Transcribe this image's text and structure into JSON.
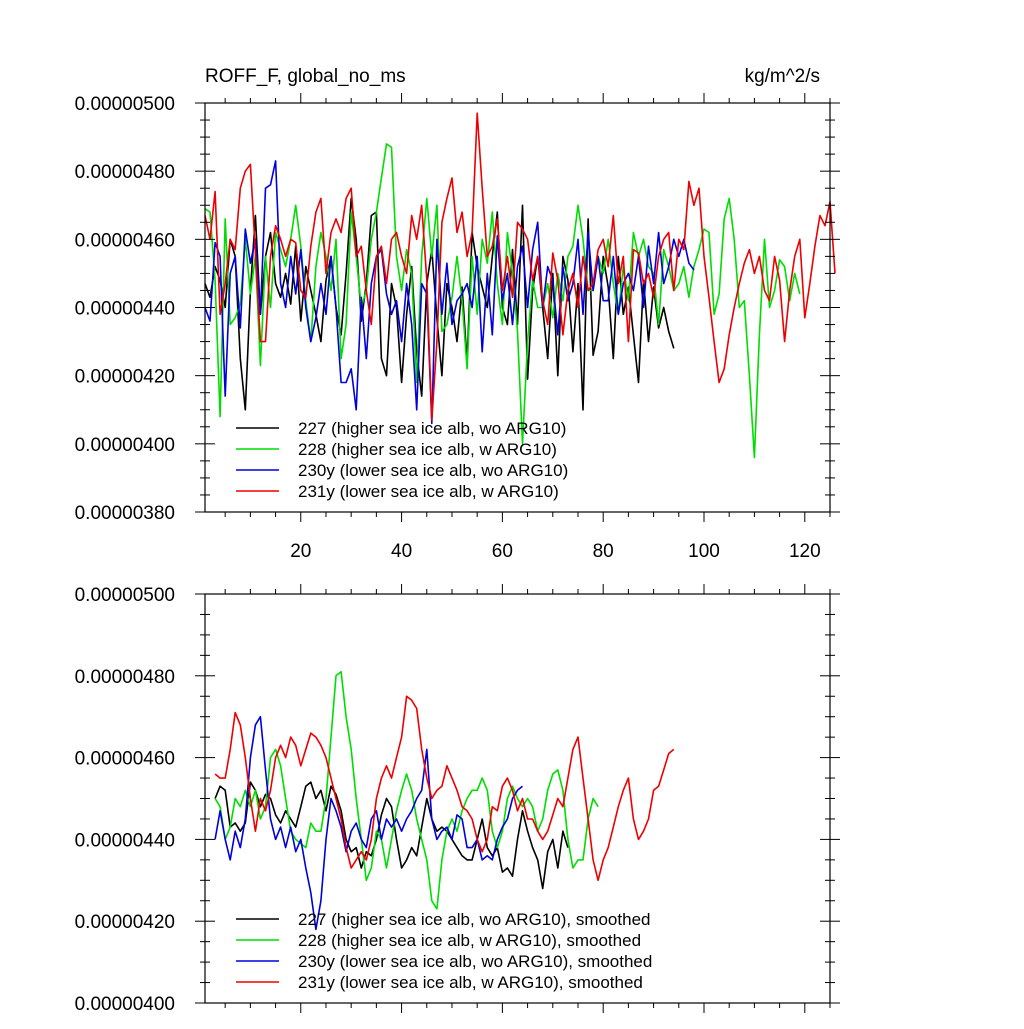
{
  "chart_data": [
    {
      "type": "line",
      "title": "ROFF_F, global_no_ms",
      "units": "kg/m^2/s",
      "ylim": [
        3.8e-06,
        5e-06
      ],
      "xlim": [
        1,
        125
      ],
      "y_ticks": [
        3.8e-06,
        4e-06,
        4.2e-06,
        4.4e-06,
        4.6e-06,
        4.8e-06,
        5e-06
      ],
      "y_tick_labels": [
        "0.00000380",
        "0.00000400",
        "0.00000420",
        "0.00000440",
        "0.00000460",
        "0.00000480",
        "0.00000500"
      ],
      "x_ticks": [
        20,
        40,
        60,
        80,
        100,
        120
      ],
      "x_tick_labels": [
        "20",
        "40",
        "60",
        "80",
        "100",
        "120"
      ],
      "grid": false,
      "legend_position": "bottom-left",
      "series": [
        {
          "name": "227 (higher sea ice alb, wo ARG10)",
          "color": "#000000",
          "start_x": 1,
          "values": [
            4.47e-06,
            4.43e-06,
            4.52e-06,
            4.48e-06,
            4.4e-06,
            4.6e-06,
            4.55e-06,
            4.25e-06,
            4.1e-06,
            4.45e-06,
            4.67e-06,
            4.38e-06,
            4.55e-06,
            4.62e-06,
            4.47e-06,
            4.43e-06,
            4.5e-06,
            4.41e-06,
            4.58e-06,
            4.36e-06,
            4.52e-06,
            4.45e-06,
            4.38e-06,
            4.3e-06,
            4.48e-06,
            4.55e-06,
            4.4e-06,
            4.32e-06,
            4.5e-06,
            4.72e-06,
            4.6e-06,
            4.36e-06,
            4.47e-06,
            4.67e-06,
            4.68e-06,
            4.25e-06,
            4.2e-06,
            4.47e-06,
            4.4e-06,
            4.18e-06,
            4.38e-06,
            4.52e-06,
            4.27e-06,
            4.14e-06,
            4.47e-06,
            4.57e-06,
            4.37e-06,
            4.2e-06,
            4.47e-06,
            4.4e-06,
            4.3e-06,
            4.46e-06,
            4.24e-06,
            4.62e-06,
            4.52e-06,
            4.46e-06,
            4.4e-06,
            4.55e-06,
            4.68e-06,
            4.4e-06,
            4.35e-06,
            4.57e-06,
            4.35e-06,
            4.7e-06,
            4.19e-06,
            4.45e-06,
            4.55e-06,
            4.4e-06,
            4.25e-06,
            4.5e-06,
            4.2e-06,
            4.55e-06,
            4.48e-06,
            4.27e-06,
            4.47e-06,
            4.1e-06,
            4.66e-06,
            4.26e-06,
            4.33e-06,
            4.55e-06,
            4.46e-06,
            4.25e-06,
            4.55e-06,
            4.38e-06,
            4.46e-06,
            4.32e-06,
            4.18e-06,
            4.48e-06,
            4.3e-06,
            4.46e-06,
            4.34e-06,
            4.4e-06,
            4.33e-06,
            4.28e-06
          ]
        },
        {
          "name": "228 (higher sea ice alb, w ARG10)",
          "color": "#00dd00",
          "start_x": 1,
          "values": [
            4.69e-06,
            4.68e-06,
            4.48e-06,
            4.08e-06,
            4.66e-06,
            4.35e-06,
            4.37e-06,
            4.41e-06,
            4.6e-06,
            4.44e-06,
            4.55e-06,
            4.23e-06,
            4.55e-06,
            4.4e-06,
            4.62e-06,
            4.57e-06,
            4.52e-06,
            4.6e-06,
            4.7e-06,
            4.58e-06,
            4.42e-06,
            4.3e-06,
            4.52e-06,
            4.62e-06,
            4.55e-06,
            4.45e-06,
            4.6e-06,
            4.25e-06,
            4.35e-06,
            4.68e-06,
            4.55e-06,
            4.4e-06,
            4.45e-06,
            4.6e-06,
            4.68e-06,
            4.78e-06,
            4.88e-06,
            4.87e-06,
            4.55e-06,
            4.45e-06,
            4.57e-06,
            4.5e-06,
            4.18e-06,
            4.55e-06,
            4.72e-06,
            4.55e-06,
            4.7e-06,
            4.33e-06,
            4.35e-06,
            4.43e-06,
            4.55e-06,
            4.42e-06,
            4.22e-06,
            4.55e-06,
            4.38e-06,
            4.6e-06,
            4.53e-06,
            4.68e-06,
            4.47e-06,
            4.35e-06,
            4.62e-06,
            4.5e-06,
            4.33e-06,
            4e-06,
            4.3e-06,
            4.48e-06,
            4.4e-06,
            4.4e-06,
            4.47e-06,
            4.37e-06,
            4.5e-06,
            4.42e-06,
            4.55e-06,
            4.58e-06,
            4.7e-06,
            4.6e-06,
            4.45e-06,
            4.45e-06,
            4.55e-06,
            4.5e-06,
            4.6e-06,
            4.47e-06,
            4.38e-06,
            4.52e-06,
            4.42e-06,
            4.62e-06,
            4.55e-06,
            4.6e-06,
            4.52e-06,
            4.5e-06,
            4.35e-06,
            4.57e-06,
            4.52e-06,
            4.45e-06,
            4.47e-06,
            4.52e-06,
            4.43e-06,
            4.52e-06,
            4.57e-06,
            4.63e-06,
            4.62e-06,
            4.38e-06,
            4.44e-06,
            4.66e-06,
            4.72e-06,
            4.6e-06,
            4.4e-06,
            4.42e-06,
            4.2e-06,
            3.96e-06,
            4.32e-06,
            4.6e-06,
            4.4e-06,
            4.45e-06,
            4.54e-06,
            4.52e-06,
            4.42e-06,
            4.5e-06,
            4.44e-06
          ]
        },
        {
          "name": "230y (lower sea ice alb, wo ARG10)",
          "color": "#0000dd",
          "start_x": 1,
          "values": [
            4.4e-06,
            4.36e-06,
            4.59e-06,
            4.55e-06,
            4.14e-06,
            4.5e-06,
            4.55e-06,
            4.34e-06,
            4.63e-06,
            4.53e-06,
            4.6e-06,
            4.38e-06,
            4.75e-06,
            4.76e-06,
            4.83e-06,
            4.47e-06,
            4.4e-06,
            4.55e-06,
            4.44e-06,
            4.57e-06,
            4.4e-06,
            4.3e-06,
            4.37e-06,
            4.47e-06,
            4.38e-06,
            4.55e-06,
            4.4e-06,
            4.18e-06,
            4.18e-06,
            4.22e-06,
            4.1e-06,
            4.43e-06,
            4.25e-06,
            4.47e-06,
            4.55e-06,
            4.57e-06,
            4.44e-06,
            4.38e-06,
            4.42e-06,
            4.3e-06,
            4.47e-06,
            4.35e-06,
            4.1e-06,
            4.47e-06,
            4.44e-06,
            4.06e-06,
            4.6e-06,
            4.38e-06,
            4.53e-06,
            4.35e-06,
            4.42e-06,
            4.44e-06,
            4.47e-06,
            4.4e-06,
            4.55e-06,
            4.27e-06,
            4.5e-06,
            4.32e-06,
            4.61e-06,
            4.42e-06,
            4.5e-06,
            4.35e-06,
            4.52e-06,
            4.58e-06,
            4.4e-06,
            4.57e-06,
            4.65e-06,
            4.4e-06,
            4.52e-06,
            4.48e-06,
            4.32e-06,
            4.52e-06,
            4.42e-06,
            4.47e-06,
            4.6e-06,
            4.38e-06,
            4.62e-06,
            4.45e-06,
            4.55e-06,
            4.42e-06,
            4.42e-06,
            4.55e-06,
            4.38e-06,
            4.47e-06,
            4.5e-06,
            4.45e-06,
            4.55e-06,
            4.4e-06,
            4.58e-06,
            4.47e-06,
            4.62e-06,
            4.47e-06,
            4.52e-06,
            4.6e-06,
            4.55e-06,
            4.6e-06,
            4.53e-06,
            4.51e-06
          ]
        },
        {
          "name": "231y (lower sea ice alb, w ARG10)",
          "color": "#ee0000",
          "start_x": 1,
          "values": [
            4.67e-06,
            4.6e-06,
            4.74e-06,
            4.38e-06,
            4.47e-06,
            4.6e-06,
            4.57e-06,
            4.75e-06,
            4.8e-06,
            4.82e-06,
            4.56e-06,
            4.3e-06,
            4.3e-06,
            4.55e-06,
            4.64e-06,
            4.6e-06,
            4.55e-06,
            4.6e-06,
            4.59e-06,
            4.45e-06,
            4.43e-06,
            4.58e-06,
            4.68e-06,
            4.72e-06,
            4.5e-06,
            4.62e-06,
            4.66e-06,
            4.62e-06,
            4.72e-06,
            4.75e-06,
            4.55e-06,
            4.58e-06,
            4.45e-06,
            4.35e-06,
            4.55e-06,
            4.58e-06,
            4.47e-06,
            4.6e-06,
            4.62e-06,
            4.55e-06,
            4.5e-06,
            4.67e-06,
            4.6e-06,
            4.7e-06,
            4.48e-06,
            4.07e-06,
            4.3e-06,
            4.65e-06,
            4.72e-06,
            4.78e-06,
            4.62e-06,
            4.68e-06,
            4.55e-06,
            4.62e-06,
            4.97e-06,
            4.75e-06,
            4.55e-06,
            4.58e-06,
            4.66e-06,
            4.45e-06,
            4.55e-06,
            4.43e-06,
            4.65e-06,
            4.63e-06,
            4.6e-06,
            4.48e-06,
            4.55e-06,
            4.42e-06,
            4.35e-06,
            4.56e-06,
            4.48e-06,
            4.32e-06,
            4.45e-06,
            4.5e-06,
            4.4e-06,
            4.55e-06,
            4.45e-06,
            4.47e-06,
            4.57e-06,
            4.6e-06,
            4.52e-06,
            4.67e-06,
            4.47e-06,
            4.55e-06,
            4.3e-06,
            4.57e-06,
            4.56e-06,
            4.47e-06,
            4.5e-06,
            4.43e-06,
            4.55e-06,
            4.6e-06,
            4.62e-06,
            4.45e-06,
            4.6e-06,
            4.57e-06,
            4.77e-06,
            4.7e-06,
            4.75e-06,
            4.55e-06,
            4.43e-06,
            4.3e-06,
            4.18e-06,
            4.22e-06,
            4.32e-06,
            4.4e-06,
            4.47e-06,
            4.53e-06,
            4.57e-06,
            4.5e-06,
            4.55e-06,
            4.45e-06,
            4.42e-06,
            4.55e-06,
            4.48e-06,
            4.3e-06,
            4.45e-06,
            4.55e-06,
            4.6e-06,
            4.37e-06,
            4.47e-06,
            4.58e-06,
            4.67e-06,
            4.64e-06,
            4.71e-06,
            4.5e-06
          ]
        }
      ]
    },
    {
      "type": "line",
      "ylim": [
        4e-06,
        5e-06
      ],
      "xlim": [
        1,
        125
      ],
      "y_ticks": [
        4e-06,
        4.2e-06,
        4.4e-06,
        4.6e-06,
        4.8e-06,
        5e-06
      ],
      "y_tick_labels": [
        "0.00000400",
        "0.00000420",
        "0.00000440",
        "0.00000460",
        "0.00000480",
        "0.00000500"
      ],
      "x_ticks": [
        20,
        40,
        60,
        80,
        100,
        120
      ],
      "x_tick_labels": [],
      "grid": false,
      "legend_position": "bottom-left",
      "series": [
        {
          "name": "227 (higher sea ice alb, wo ARG10), smoothed",
          "color": "#000000",
          "start_x": 3,
          "values": [
            4.5e-06,
            4.53e-06,
            4.52e-06,
            4.43e-06,
            4.44e-06,
            4.42e-06,
            4.44e-06,
            4.54e-06,
            4.52e-06,
            4.48e-06,
            4.51e-06,
            4.5e-06,
            4.46e-06,
            4.44e-06,
            4.47e-06,
            4.45e-06,
            4.43e-06,
            4.48e-06,
            4.53e-06,
            4.54e-06,
            4.5e-06,
            4.52e-06,
            4.47e-06,
            4.53e-06,
            4.51e-06,
            4.47e-06,
            4.4e-06,
            4.37e-06,
            4.38e-06,
            4.33e-06,
            4.37e-06,
            4.36e-06,
            4.4e-06,
            4.46e-06,
            4.5e-06,
            4.48e-06,
            4.4e-06,
            4.33e-06,
            4.35e-06,
            4.38e-06,
            4.36e-06,
            4.43e-06,
            4.5e-06,
            4.45e-06,
            4.42e-06,
            4.43e-06,
            4.42e-06,
            4.4e-06,
            4.38e-06,
            4.36e-06,
            4.35e-06,
            4.35e-06,
            4.4e-06,
            4.45e-06,
            4.38e-06,
            4.36e-06,
            4.38e-06,
            4.32e-06,
            4.33e-06,
            4.31e-06,
            4.4e-06,
            4.47e-06,
            4.42e-06,
            4.38e-06,
            4.35e-06,
            4.28e-06,
            4.37e-06,
            4.4e-06,
            4.33e-06,
            4.42e-06,
            4.38e-06
          ]
        },
        {
          "name": "228 (higher sea ice alb, w ARG10), smoothed",
          "color": "#00dd00",
          "start_x": 3,
          "values": [
            4.5e-06,
            4.48e-06,
            4.4e-06,
            4.43e-06,
            4.5e-06,
            4.48e-06,
            4.52e-06,
            4.48e-06,
            4.52e-06,
            4.45e-06,
            4.48e-06,
            4.6e-06,
            4.62e-06,
            4.58e-06,
            4.5e-06,
            4.42e-06,
            4.4e-06,
            4.39e-06,
            4.38e-06,
            4.44e-06,
            4.42e-06,
            4.42e-06,
            4.5e-06,
            4.65e-06,
            4.8e-06,
            4.81e-06,
            4.7e-06,
            4.62e-06,
            4.5e-06,
            4.4e-06,
            4.3e-06,
            4.33e-06,
            4.42e-06,
            4.4e-06,
            4.33e-06,
            4.4e-06,
            4.47e-06,
            4.52e-06,
            4.56e-06,
            4.52e-06,
            4.45e-06,
            4.4e-06,
            4.35e-06,
            4.25e-06,
            4.23e-06,
            4.35e-06,
            4.42e-06,
            4.45e-06,
            4.42e-06,
            4.47e-06,
            4.5e-06,
            4.52e-06,
            4.52e-06,
            4.55e-06,
            4.52e-06,
            4.42e-06,
            4.38e-06,
            4.42e-06,
            4.5e-06,
            4.53e-06,
            4.5e-06,
            4.48e-06,
            4.5e-06,
            4.48e-06,
            4.42e-06,
            4.45e-06,
            4.52e-06,
            4.56e-06,
            4.57e-06,
            4.52e-06,
            4.4e-06,
            4.33e-06,
            4.35e-06,
            4.35e-06,
            4.45e-06,
            4.5e-06,
            4.48e-06
          ]
        },
        {
          "name": "230y (lower sea ice alb, wo ARG10), smoothed",
          "color": "#0000dd",
          "start_x": 3,
          "values": [
            4.4e-06,
            4.47e-06,
            4.4e-06,
            4.35e-06,
            4.42e-06,
            4.38e-06,
            4.45e-06,
            4.6e-06,
            4.68e-06,
            4.7e-06,
            4.57e-06,
            4.45e-06,
            4.4e-06,
            4.43e-06,
            4.38e-06,
            4.43e-06,
            4.37e-06,
            4.4e-06,
            4.33e-06,
            4.27e-06,
            4.18e-06,
            4.25e-06,
            4.4e-06,
            4.5e-06,
            4.47e-06,
            4.43e-06,
            4.37e-06,
            4.42e-06,
            4.44e-06,
            4.4e-06,
            4.38e-06,
            4.45e-06,
            4.47e-06,
            4.4e-06,
            4.45e-06,
            4.43e-06,
            4.45e-06,
            4.42e-06,
            4.45e-06,
            4.47e-06,
            4.5e-06,
            4.52e-06,
            4.62e-06,
            4.45e-06,
            4.4e-06,
            4.42e-06,
            4.43e-06,
            4.4e-06,
            4.46e-06,
            4.45e-06,
            4.38e-06,
            4.38e-06,
            4.4e-06,
            4.35e-06,
            4.36e-06,
            4.35e-06,
            4.4e-06,
            4.43e-06,
            4.45e-06,
            4.5e-06,
            4.52e-06,
            4.53e-06
          ]
        },
        {
          "name": "231y (lower sea ice alb, w ARG10), smoothed",
          "color": "#ee0000",
          "start_x": 3,
          "values": [
            4.56e-06,
            4.55e-06,
            4.55e-06,
            4.62e-06,
            4.71e-06,
            4.68e-06,
            4.6e-06,
            4.5e-06,
            4.42e-06,
            4.5e-06,
            4.47e-06,
            4.52e-06,
            4.6e-06,
            4.63e-06,
            4.6e-06,
            4.65e-06,
            4.63e-06,
            4.58e-06,
            4.62e-06,
            4.66e-06,
            4.65e-06,
            4.63e-06,
            4.6e-06,
            4.55e-06,
            4.5e-06,
            4.45e-06,
            4.38e-06,
            4.33e-06,
            4.35e-06,
            4.37e-06,
            4.35e-06,
            4.4e-06,
            4.5e-06,
            4.55e-06,
            4.58e-06,
            4.55e-06,
            4.6e-06,
            4.65e-06,
            4.75e-06,
            4.74e-06,
            4.72e-06,
            4.62e-06,
            4.55e-06,
            4.5e-06,
            4.52e-06,
            4.53e-06,
            4.58e-06,
            4.55e-06,
            4.52e-06,
            4.48e-06,
            4.47e-06,
            4.45e-06,
            4.4e-06,
            4.37e-06,
            4.4e-06,
            4.48e-06,
            4.47e-06,
            4.53e-06,
            4.55e-06,
            4.52e-06,
            4.47e-06,
            4.5e-06,
            4.45e-06,
            4.45e-06,
            4.42e-06,
            4.4e-06,
            4.42e-06,
            4.46e-06,
            4.5e-06,
            4.48e-06,
            4.55e-06,
            4.62e-06,
            4.65e-06,
            4.55e-06,
            4.45e-06,
            4.35e-06,
            4.3e-06,
            4.35e-06,
            4.38e-06,
            4.43e-06,
            4.48e-06,
            4.52e-06,
            4.55e-06,
            4.45e-06,
            4.4e-06,
            4.42e-06,
            4.45e-06,
            4.52e-06,
            4.53e-06,
            4.57e-06,
            4.61e-06,
            4.62e-06
          ]
        }
      ]
    }
  ]
}
